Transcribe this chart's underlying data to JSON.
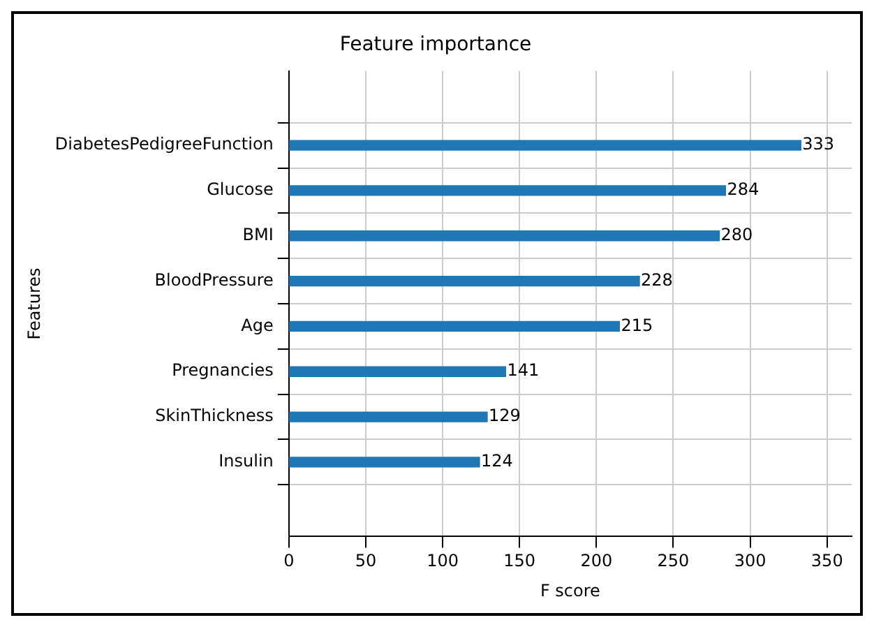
{
  "chart_data": {
    "type": "bar",
    "orientation": "horizontal",
    "title": "Feature importance",
    "xlabel": "F score",
    "ylabel": "Features",
    "categories": [
      "DiabetesPedigreeFunction",
      "Glucose",
      "BMI",
      "BloodPressure",
      "Age",
      "Pregnancies",
      "SkinThickness",
      "Insulin"
    ],
    "values": [
      333,
      284,
      280,
      228,
      215,
      141,
      129,
      124
    ],
    "color": "#1f77b4",
    "xlim": [
      0,
      366
    ],
    "xticks": [
      0,
      50,
      100,
      150,
      200,
      250,
      300,
      350
    ],
    "grid": true,
    "data_labels": true
  }
}
